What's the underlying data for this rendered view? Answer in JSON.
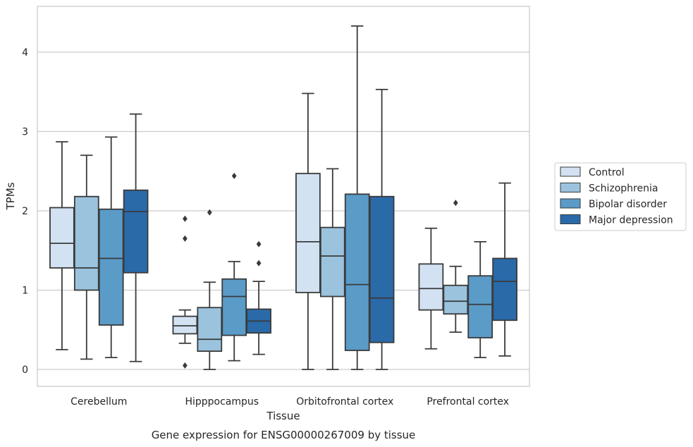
{
  "chart_data": {
    "type": "box",
    "caption": "Gene expression for ENSG00000267009 by tissue",
    "xlabel": "Tissue",
    "ylabel": "TPMs",
    "ylim": [
      -0.2,
      4.56
    ],
    "yticks": [
      0,
      1,
      2,
      3,
      4
    ],
    "grid": true,
    "legend_position": "right",
    "categories": [
      "Cerebellum",
      "Hipppocampus",
      "Orbitofrontal cortex",
      "Prefrontal cortex"
    ],
    "series": [
      {
        "name": "Control",
        "color": "#d2e2f2",
        "boxes": [
          {
            "whisker_low": 0.25,
            "q1": 1.28,
            "median": 1.59,
            "q3": 2.04,
            "whisker_high": 2.87,
            "outliers": []
          },
          {
            "whisker_low": 0.33,
            "q1": 0.45,
            "median": 0.55,
            "q3": 0.67,
            "whisker_high": 0.75,
            "outliers": [
              0.05,
              1.65,
              1.9
            ]
          },
          {
            "whisker_low": 0.0,
            "q1": 0.97,
            "median": 1.61,
            "q3": 2.47,
            "whisker_high": 3.48,
            "outliers": []
          },
          {
            "whisker_low": 0.26,
            "q1": 0.75,
            "median": 1.02,
            "q3": 1.33,
            "whisker_high": 1.78,
            "outliers": []
          }
        ]
      },
      {
        "name": "Schizophrenia",
        "color": "#9bc3de",
        "boxes": [
          {
            "whisker_low": 0.13,
            "q1": 1.0,
            "median": 1.28,
            "q3": 2.18,
            "whisker_high": 2.7,
            "outliers": []
          },
          {
            "whisker_low": 0.0,
            "q1": 0.23,
            "median": 0.38,
            "q3": 0.78,
            "whisker_high": 1.1,
            "outliers": [
              1.98
            ]
          },
          {
            "whisker_low": 0.0,
            "q1": 0.92,
            "median": 1.43,
            "q3": 1.79,
            "whisker_high": 2.53,
            "outliers": []
          },
          {
            "whisker_low": 0.47,
            "q1": 0.7,
            "median": 0.86,
            "q3": 1.06,
            "whisker_high": 1.3,
            "outliers": [
              2.1
            ]
          }
        ]
      },
      {
        "name": "Bipolar disorder",
        "color": "#5a9bc8",
        "boxes": [
          {
            "whisker_low": 0.15,
            "q1": 0.56,
            "median": 1.4,
            "q3": 2.02,
            "whisker_high": 2.93,
            "outliers": []
          },
          {
            "whisker_low": 0.11,
            "q1": 0.43,
            "median": 0.92,
            "q3": 1.14,
            "whisker_high": 1.36,
            "outliers": [
              2.44
            ]
          },
          {
            "whisker_low": 0.0,
            "q1": 0.24,
            "median": 1.07,
            "q3": 2.21,
            "whisker_high": 4.33,
            "outliers": []
          },
          {
            "whisker_low": 0.15,
            "q1": 0.4,
            "median": 0.82,
            "q3": 1.18,
            "whisker_high": 1.61,
            "outliers": []
          }
        ]
      },
      {
        "name": "Major depression",
        "color": "#2a6aa9",
        "boxes": [
          {
            "whisker_low": 0.1,
            "q1": 1.22,
            "median": 1.99,
            "q3": 2.26,
            "whisker_high": 3.22,
            "outliers": []
          },
          {
            "whisker_low": 0.19,
            "q1": 0.46,
            "median": 0.61,
            "q3": 0.76,
            "whisker_high": 1.11,
            "outliers": [
              1.34,
              1.58
            ]
          },
          {
            "whisker_low": 0.0,
            "q1": 0.34,
            "median": 0.9,
            "q3": 2.18,
            "whisker_high": 3.53,
            "outliers": []
          },
          {
            "whisker_low": 0.17,
            "q1": 0.62,
            "median": 1.11,
            "q3": 1.4,
            "whisker_high": 2.35,
            "outliers": []
          }
        ]
      }
    ]
  }
}
